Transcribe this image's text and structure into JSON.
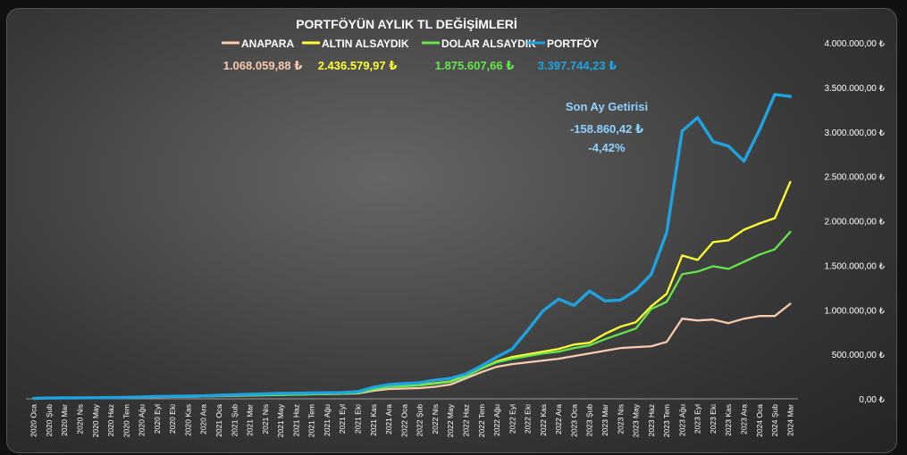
{
  "chart_data": {
    "type": "line",
    "title": "PORTFÖYÜN AYLIK TL DEĞİŞİMLERİ",
    "xlabel": "",
    "ylabel": "",
    "ylim": [
      0,
      4000000
    ],
    "grid": false,
    "legend_position": "top",
    "x": [
      "2020 Oca",
      "2020 Şub",
      "2020 Mar",
      "2020 Nis",
      "2020 May",
      "2020 Haz",
      "2020 Tem",
      "2020 Ağu",
      "2020 Eyl",
      "2020 Eki",
      "2020 Kas",
      "2020 Ara",
      "2021 Oca",
      "2021 Şub",
      "2021 Mar",
      "2021 Nis",
      "2021 May",
      "2021 Haz",
      "2021 Tem",
      "2021 Ağu",
      "2021 Eyl",
      "2021 Eki",
      "2021 Kas",
      "2021 Ara",
      "2022 Oca",
      "2022 Şub",
      "2022 Nis",
      "2022 May",
      "2022 Haz",
      "2022 Tem",
      "2022 Ağu",
      "2022 Eyl",
      "2022 Eki",
      "2022 Kas",
      "2022 Ara",
      "2023 Oca",
      "2023 Şub",
      "2023 Mar",
      "2023 Nis",
      "2023 May",
      "2023 Haz",
      "2023 Tem",
      "2023 Ağu",
      "2023 Eyl",
      "2023 Eki",
      "2023 Kas",
      "2023 Ara",
      "2024 Oca",
      "2024 Şub",
      "2024 Mar"
    ],
    "series": [
      {
        "name": "ANAPARA",
        "color": "#f8cbad",
        "final_label": "1.068.059,88 ₺",
        "values": [
          5000,
          8000,
          10000,
          11000,
          12000,
          14000,
          16000,
          18000,
          20000,
          22000,
          24000,
          27000,
          30000,
          33000,
          36000,
          40000,
          43000,
          46000,
          50000,
          53000,
          56000,
          60000,
          90000,
          110000,
          115000,
          120000,
          135000,
          160000,
          230000,
          300000,
          360000,
          390000,
          410000,
          430000,
          450000,
          480000,
          510000,
          540000,
          570000,
          580000,
          590000,
          640000,
          900000,
          880000,
          890000,
          850000,
          900000,
          930000,
          930000,
          1068060
        ]
      },
      {
        "name": "ALTIN ALSAYDIK",
        "color": "#ffff33",
        "final_label": "2.436.579,97 ₺",
        "values": [
          5000,
          8000,
          10000,
          11000,
          12000,
          14000,
          16000,
          18000,
          20000,
          22000,
          24000,
          28000,
          35000,
          38000,
          40000,
          45000,
          48000,
          50000,
          55000,
          58000,
          60000,
          70000,
          110000,
          140000,
          145000,
          155000,
          175000,
          195000,
          260000,
          340000,
          420000,
          470000,
          500000,
          530000,
          560000,
          610000,
          630000,
          730000,
          810000,
          860000,
          1040000,
          1180000,
          1610000,
          1560000,
          1760000,
          1780000,
          1900000,
          1970000,
          2030000,
          2436580
        ]
      },
      {
        "name": "DOLAR ALSAYDIK",
        "color": "#66e64d",
        "final_label": "1.875.607,66 ₺",
        "values": [
          5000,
          8000,
          10000,
          11000,
          12000,
          14000,
          16000,
          18000,
          20000,
          22000,
          24000,
          27000,
          33000,
          36000,
          38000,
          42000,
          45000,
          48000,
          52000,
          55000,
          58000,
          65000,
          105000,
          135000,
          140000,
          150000,
          170000,
          190000,
          250000,
          340000,
          410000,
          450000,
          480000,
          510000,
          530000,
          570000,
          600000,
          670000,
          730000,
          790000,
          1010000,
          1090000,
          1400000,
          1430000,
          1490000,
          1460000,
          1540000,
          1620000,
          1680000,
          1875608
        ]
      },
      {
        "name": "PORTFÖY",
        "color": "#1fa3e0",
        "final_label": "3.397.744,23 ₺",
        "values": [
          5000,
          8000,
          10000,
          11000,
          12000,
          14000,
          16000,
          20000,
          25000,
          28000,
          30000,
          33000,
          40000,
          45000,
          50000,
          55000,
          60000,
          62000,
          65000,
          68000,
          70000,
          80000,
          130000,
          160000,
          170000,
          180000,
          210000,
          230000,
          280000,
          370000,
          470000,
          560000,
          770000,
          990000,
          1120000,
          1050000,
          1210000,
          1100000,
          1110000,
          1220000,
          1400000,
          1870000,
          3010000,
          3160000,
          2890000,
          2840000,
          2670000,
          3020000,
          3420000,
          3397744
        ]
      }
    ],
    "yticks": [
      "0,00 ₺",
      "500.000,00 ₺",
      "1.000.000,00 ₺",
      "1.500.000,00 ₺",
      "2.000.000,00 ₺",
      "2.500.000,00 ₺",
      "3.000.000,00 ₺",
      "3.500.000,00 ₺",
      "4.000.000,00 ₺"
    ],
    "annotation": {
      "title": "Son Ay Getirisi",
      "amount": "-158.860,42 ₺",
      "percent": "-4,42%"
    }
  }
}
